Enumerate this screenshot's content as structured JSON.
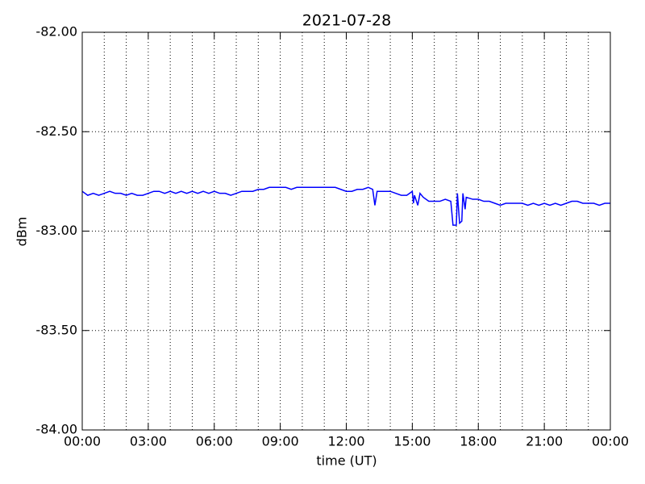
{
  "chart_data": {
    "type": "line",
    "title": "2021-07-28",
    "x_label": "time (UT)",
    "y_label": "dBm",
    "color": "#0000ff",
    "grid": true,
    "xlim": [
      0,
      24
    ],
    "xticks": [
      {
        "value": 0,
        "label": "00:00"
      },
      {
        "value": 3,
        "label": "03:00"
      },
      {
        "value": 6,
        "label": "06:00"
      },
      {
        "value": 9,
        "label": "09:00"
      },
      {
        "value": 12,
        "label": "12:00"
      },
      {
        "value": 15,
        "label": "15:00"
      },
      {
        "value": 18,
        "label": "18:00"
      },
      {
        "value": 21,
        "label": "21:00"
      },
      {
        "value": 24,
        "label": "00:00"
      }
    ],
    "xminorticks": [
      1,
      2,
      4,
      5,
      7,
      8,
      10,
      11,
      13,
      14,
      16,
      17,
      19,
      20,
      22,
      23
    ],
    "ylim": [
      -84,
      -82
    ],
    "yticks": [
      {
        "value": -84,
        "label": "-84.00"
      },
      {
        "value": -83.5,
        "label": "-83.50"
      },
      {
        "value": -83,
        "label": "-83.00"
      },
      {
        "value": -82.5,
        "label": "-82.50"
      },
      {
        "value": -82,
        "label": "-82.00"
      }
    ],
    "x": [
      0,
      0.25,
      0.5,
      0.75,
      1,
      1.25,
      1.5,
      1.75,
      2,
      2.25,
      2.5,
      2.75,
      3,
      3.25,
      3.5,
      3.75,
      4,
      4.25,
      4.5,
      4.75,
      5,
      5.25,
      5.5,
      5.75,
      6,
      6.25,
      6.5,
      6.75,
      7,
      7.25,
      7.5,
      7.75,
      8,
      8.25,
      8.5,
      8.75,
      9,
      9.25,
      9.5,
      9.75,
      10,
      10.25,
      10.5,
      10.75,
      11,
      11.25,
      11.5,
      11.75,
      12,
      12.25,
      12.5,
      12.75,
      13,
      13.2,
      13.3,
      13.4,
      13.75,
      14,
      14.25,
      14.5,
      14.75,
      15,
      15.05,
      15.1,
      15.25,
      15.35,
      15.5,
      15.75,
      16,
      16.25,
      16.5,
      16.75,
      16.85,
      17,
      17.05,
      17.15,
      17.25,
      17.3,
      17.4,
      17.45,
      17.75,
      18,
      18.25,
      18.5,
      18.75,
      19,
      19.25,
      19.5,
      19.75,
      20,
      20.25,
      20.5,
      20.75,
      21,
      21.25,
      21.5,
      21.75,
      22,
      22.25,
      22.5,
      22.75,
      23,
      23.25,
      23.5,
      23.75,
      24
    ],
    "values": [
      -82.8,
      -82.82,
      -82.81,
      -82.82,
      -82.81,
      -82.8,
      -82.81,
      -82.81,
      -82.82,
      -82.81,
      -82.82,
      -82.82,
      -82.81,
      -82.8,
      -82.8,
      -82.81,
      -82.8,
      -82.81,
      -82.8,
      -82.81,
      -82.8,
      -82.81,
      -82.8,
      -82.81,
      -82.8,
      -82.81,
      -82.81,
      -82.82,
      -82.81,
      -82.8,
      -82.8,
      -82.8,
      -82.79,
      -82.79,
      -82.78,
      -82.78,
      -82.78,
      -82.78,
      -82.79,
      -82.78,
      -82.78,
      -82.78,
      -82.78,
      -82.78,
      -82.78,
      -82.78,
      -82.78,
      -82.79,
      -82.8,
      -82.8,
      -82.79,
      -82.79,
      -82.78,
      -82.79,
      -82.87,
      -82.8,
      -82.8,
      -82.8,
      -82.81,
      -82.82,
      -82.82,
      -82.8,
      -82.86,
      -82.82,
      -82.87,
      -82.81,
      -82.83,
      -82.85,
      -82.85,
      -82.85,
      -82.84,
      -82.85,
      -82.97,
      -82.97,
      -82.81,
      -82.96,
      -82.95,
      -82.81,
      -82.89,
      -82.83,
      -82.84,
      -82.84,
      -82.85,
      -82.85,
      -82.86,
      -82.87,
      -82.86,
      -82.86,
      -82.86,
      -82.86,
      -82.87,
      -82.86,
      -82.87,
      -82.86,
      -82.87,
      -82.86,
      -82.87,
      -82.86,
      -82.85,
      -82.85,
      -82.86,
      -82.86,
      -82.86,
      -82.87,
      -82.86,
      -82.86
    ]
  }
}
